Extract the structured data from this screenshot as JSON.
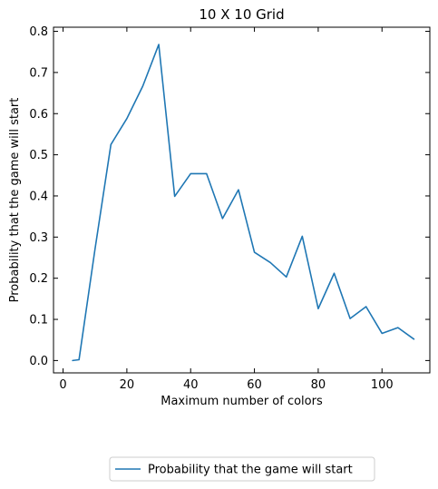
{
  "colors": {
    "series": "#1f77b4",
    "ylabel": "#1f77b4",
    "axis": "#000000",
    "legend_border": "#cccccc"
  },
  "chart_data": {
    "type": "line",
    "title": "10 X 10 Grid",
    "xlabel": "Maximum number of colors",
    "ylabel": "Probability that the game will start",
    "xlim": [
      -3,
      115
    ],
    "ylim": [
      -0.03,
      0.81
    ],
    "xticks": [
      0,
      20,
      40,
      60,
      80,
      100
    ],
    "xtick_labels": [
      "0",
      "20",
      "40",
      "60",
      "80",
      "100"
    ],
    "yticks": [
      0.0,
      0.1,
      0.2,
      0.3,
      0.4,
      0.5,
      0.6,
      0.7,
      0.8
    ],
    "ytick_labels": [
      "0.0",
      "0.1",
      "0.2",
      "0.3",
      "0.4",
      "0.5",
      "0.6",
      "0.7",
      "0.8"
    ],
    "grid": false,
    "legend_placement": "bottom-center",
    "series": [
      {
        "name": "Probability that the game will start",
        "x": [
          3,
          5,
          10,
          15,
          20,
          25,
          30,
          35,
          40,
          45,
          50,
          55,
          60,
          65,
          70,
          75,
          80,
          85,
          90,
          95,
          100,
          105,
          110
        ],
        "values": [
          0.0,
          0.002,
          0.27,
          0.525,
          0.588,
          0.667,
          0.768,
          0.399,
          0.454,
          0.454,
          0.345,
          0.415,
          0.263,
          0.238,
          0.203,
          0.302,
          0.126,
          0.212,
          0.102,
          0.131,
          0.066,
          0.08,
          0.052
        ]
      }
    ]
  }
}
